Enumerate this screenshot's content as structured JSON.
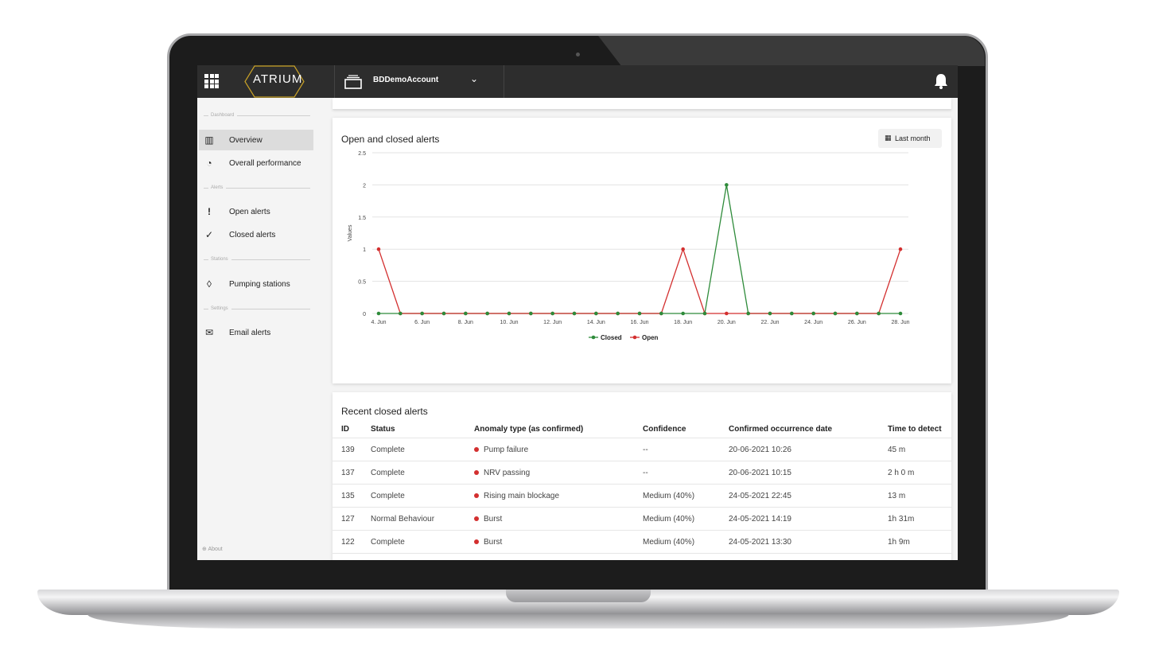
{
  "header": {
    "logo_text": "ATRIUM",
    "account_label": "BDDemoAccount"
  },
  "sidebar": {
    "sections": [
      "Dashboard",
      "Alerts",
      "Stations",
      "Settings"
    ],
    "items": [
      {
        "label": "Overview",
        "icon": "building-icon",
        "active": true
      },
      {
        "label": "Overall performance",
        "icon": "gauge-icon",
        "active": false
      },
      {
        "label": "Open alerts",
        "icon": "exclamation-icon",
        "active": false
      },
      {
        "label": "Closed alerts",
        "icon": "check-icon",
        "active": false
      },
      {
        "label": "Pumping stations",
        "icon": "drop-icon",
        "active": false
      },
      {
        "label": "Email alerts",
        "icon": "envelope-icon",
        "active": false
      }
    ],
    "about_label": "About"
  },
  "chart_card": {
    "title": "Open and closed alerts",
    "range_button": "Last month"
  },
  "chart_data": {
    "type": "line",
    "x": [
      "4. Jun",
      "5. Jun",
      "6. Jun",
      "7. Jun",
      "8. Jun",
      "9. Jun",
      "10. Jun",
      "11. Jun",
      "12. Jun",
      "13. Jun",
      "14. Jun",
      "15. Jun",
      "16. Jun",
      "17. Jun",
      "18. Jun",
      "19. Jun",
      "20. Jun",
      "21. Jun",
      "22. Jun",
      "23. Jun",
      "24. Jun",
      "25. Jun",
      "26. Jun",
      "27. Jun",
      "28. Jun"
    ],
    "x_tick_labels": [
      "4. Jun",
      "6. Jun",
      "8. Jun",
      "10. Jun",
      "12. Jun",
      "14. Jun",
      "16. Jun",
      "18. Jun",
      "20. Jun",
      "22. Jun",
      "24. Jun",
      "26. Jun",
      "28. Jun"
    ],
    "series": [
      {
        "name": "Closed",
        "color": "#2e8b3a",
        "values": [
          0,
          0,
          0,
          0,
          0,
          0,
          0,
          0,
          0,
          0,
          0,
          0,
          0,
          0,
          0,
          0,
          2,
          0,
          0,
          0,
          0,
          0,
          0,
          0,
          0
        ]
      },
      {
        "name": "Open",
        "color": "#d32f2f",
        "values": [
          1,
          0,
          0,
          0,
          0,
          0,
          0,
          0,
          0,
          0,
          0,
          0,
          0,
          0,
          1,
          0,
          0,
          0,
          0,
          0,
          0,
          0,
          0,
          0,
          1
        ]
      }
    ],
    "ylabel": "Values",
    "ylim": [
      0,
      2.5
    ],
    "y_ticks": [
      "0",
      "0.5",
      "1",
      "1.5",
      "2",
      "2.5"
    ],
    "grid": true,
    "legend": "bottom-center"
  },
  "table_card": {
    "title": "Recent closed alerts",
    "columns": [
      "ID",
      "Status",
      "Anomaly type (as confirmed)",
      "Confidence",
      "Confirmed occurrence date",
      "Time to detect"
    ],
    "rows": [
      [
        "139",
        "Complete",
        "Pump failure",
        "--",
        "20-06-2021 10:26",
        "45 m"
      ],
      [
        "137",
        "Complete",
        "NRV passing",
        "--",
        "20-06-2021 10:15",
        "2 h 0 m"
      ],
      [
        "135",
        "Complete",
        "Rising main blockage",
        "Medium (40%)",
        "24-05-2021 22:45",
        "13 m"
      ],
      [
        "127",
        "Normal Behaviour",
        "Burst",
        "Medium (40%)",
        "24-05-2021 14:19",
        "1h 31m"
      ],
      [
        "122",
        "Complete",
        "Burst",
        "Medium (40%)",
        "24-05-2021 13:30",
        "1h 9m"
      ]
    ]
  }
}
